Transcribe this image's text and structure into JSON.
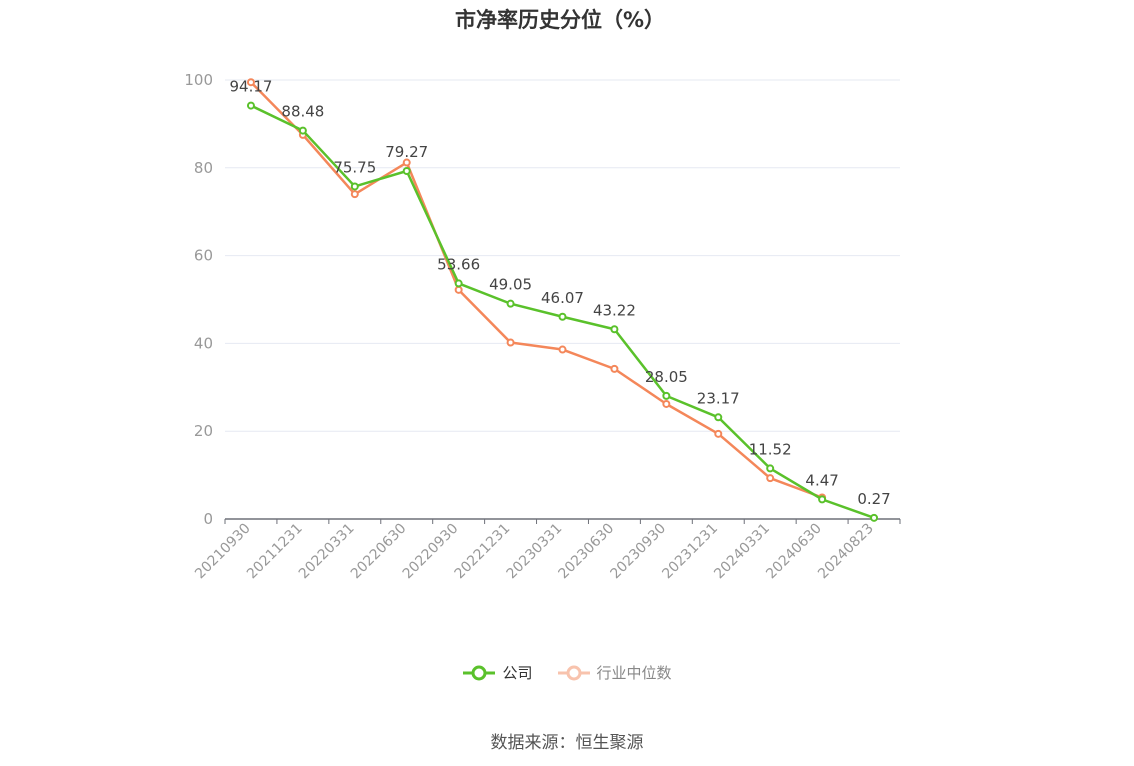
{
  "chart_data": {
    "type": "line",
    "title": "市净率历史分位（%）",
    "categories": [
      "20210930",
      "20211231",
      "20220331",
      "20220630",
      "20220930",
      "20221231",
      "20230331",
      "20230630",
      "20230930",
      "20231231",
      "20240331",
      "20240630",
      "20240823"
    ],
    "series": [
      {
        "name": "公司",
        "color": "#5ac12b",
        "values": [
          94.17,
          88.48,
          75.75,
          79.27,
          53.66,
          49.05,
          46.07,
          43.22,
          28.05,
          23.17,
          11.52,
          4.47,
          0.27
        ],
        "labels": [
          "94.17",
          "88.48",
          "75.75",
          "79.27",
          "53.66",
          "49.05",
          "46.07",
          "43.22",
          "28.05",
          "23.17",
          "11.52",
          "4.47",
          "0.27"
        ]
      },
      {
        "name": "行业中位数",
        "color": "#f4875a",
        "values": [
          99.5,
          87.5,
          74.0,
          81.2,
          52.2,
          40.2,
          38.6,
          34.2,
          26.2,
          19.4,
          9.3,
          4.9,
          null
        ]
      }
    ],
    "ylim": [
      0,
      100
    ],
    "yticks": [
      0,
      20,
      40,
      60,
      80,
      100
    ],
    "grid": true,
    "legend_position": "bottom"
  },
  "legend": {
    "company": "公司",
    "industry": "行业中位数"
  },
  "source": "数据来源：恒生聚源"
}
